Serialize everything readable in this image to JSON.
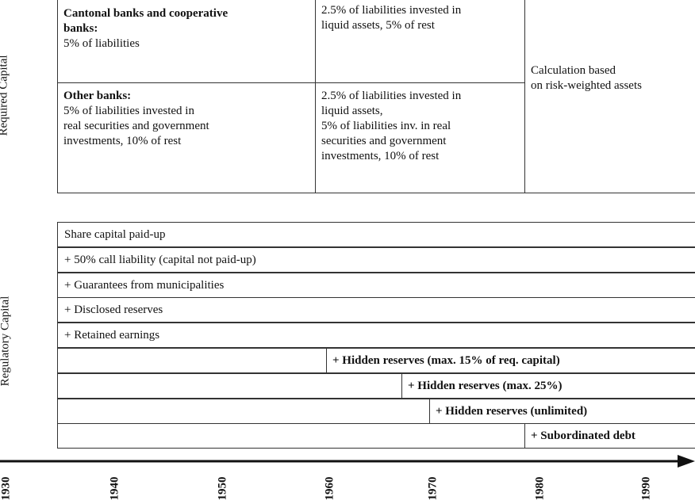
{
  "side_labels": {
    "required": "Required Capital",
    "regulatory": "Regulatory Capital"
  },
  "required_table": {
    "cells": [
      {
        "bold": [
          "Cantonal banks and cooperative",
          "banks:"
        ],
        "lines": [
          "5% of liabilities"
        ]
      },
      {
        "bold": [],
        "lines": [
          "2.5% of liabilities invested in",
          "liquid assets, 5% of rest"
        ]
      },
      {
        "bold": [
          "Other banks:"
        ],
        "lines": [
          "5% of liabilities invested in",
          "real securities and government",
          "investments, 10% of rest"
        ]
      },
      {
        "bold": [],
        "lines": [
          "2.5% of liabilities invested in",
          "liquid assets,",
          "5% of liabilities inv. in real",
          "securities and government",
          "investments, 10% of rest"
        ]
      },
      {
        "bold": [],
        "lines": [
          "Calculation based",
          "on risk-weighted assets"
        ]
      }
    ]
  },
  "regulatory_rows": [
    {
      "text": "Share capital paid-up",
      "bold": false
    },
    {
      "text": "+ 50% call liability (capital not paid-up)",
      "bold": false
    },
    {
      "text": "+ Guarantees from municipalities",
      "bold": false
    },
    {
      "text": "+ Disclosed reserves",
      "bold": false
    },
    {
      "text": "+ Retained earnings",
      "bold": false
    },
    {
      "text": "+ Hidden reserves (max. 15% of req. capital)",
      "bold": true
    },
    {
      "text": "+ Hidden reserves (max. 25%)",
      "bold": true
    },
    {
      "text": "+ Hidden reserves (unlimited)",
      "bold": true
    },
    {
      "text": "+ Subordinated debt",
      "bold": true
    }
  ],
  "timeline": {
    "years": [
      "1930",
      "1940",
      "1950",
      "1960",
      "1970",
      "1980",
      "1990"
    ]
  }
}
